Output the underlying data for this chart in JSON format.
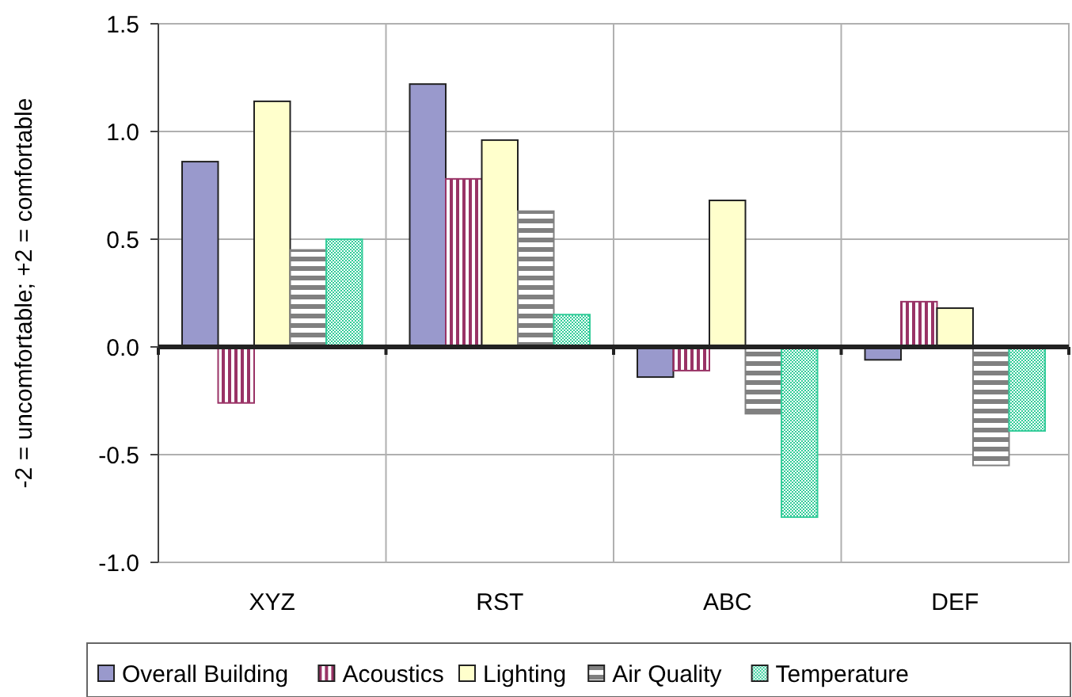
{
  "chart_data": {
    "type": "bar",
    "ylabel": "-2 = uncomfortable;  +2 = comfortable",
    "categories": [
      "XYZ",
      "RST",
      "ABC",
      "DEF"
    ],
    "series": [
      {
        "name": "Overall Building",
        "color": "#9999cc",
        "values": [
          0.86,
          1.22,
          -0.14,
          -0.06
        ]
      },
      {
        "name": "Acoustics",
        "color": "#993366",
        "values": [
          -0.26,
          0.78,
          -0.11,
          0.21
        ]
      },
      {
        "name": "Lighting",
        "color": "#ffffcc",
        "values": [
          1.14,
          0.96,
          0.68,
          0.18
        ]
      },
      {
        "name": "Air Quality",
        "color": "#808080",
        "values": [
          0.45,
          0.63,
          -0.31,
          -0.55
        ]
      },
      {
        "name": "Temperature",
        "color": "#33cc99",
        "values": [
          0.5,
          0.15,
          -0.79,
          -0.39
        ]
      }
    ],
    "ylim": [
      -1.0,
      1.5
    ],
    "yticks": [
      {
        "value": -1,
        "label": "-1.0"
      },
      {
        "value": -0.5,
        "label": "-0.5"
      },
      {
        "value": 0,
        "label": "0.0"
      },
      {
        "value": 0.5,
        "label": "0.5"
      },
      {
        "value": 1,
        "label": "1.0"
      },
      {
        "value": 1.5,
        "label": "1.5"
      }
    ],
    "grid": true,
    "legend": "bottom"
  }
}
